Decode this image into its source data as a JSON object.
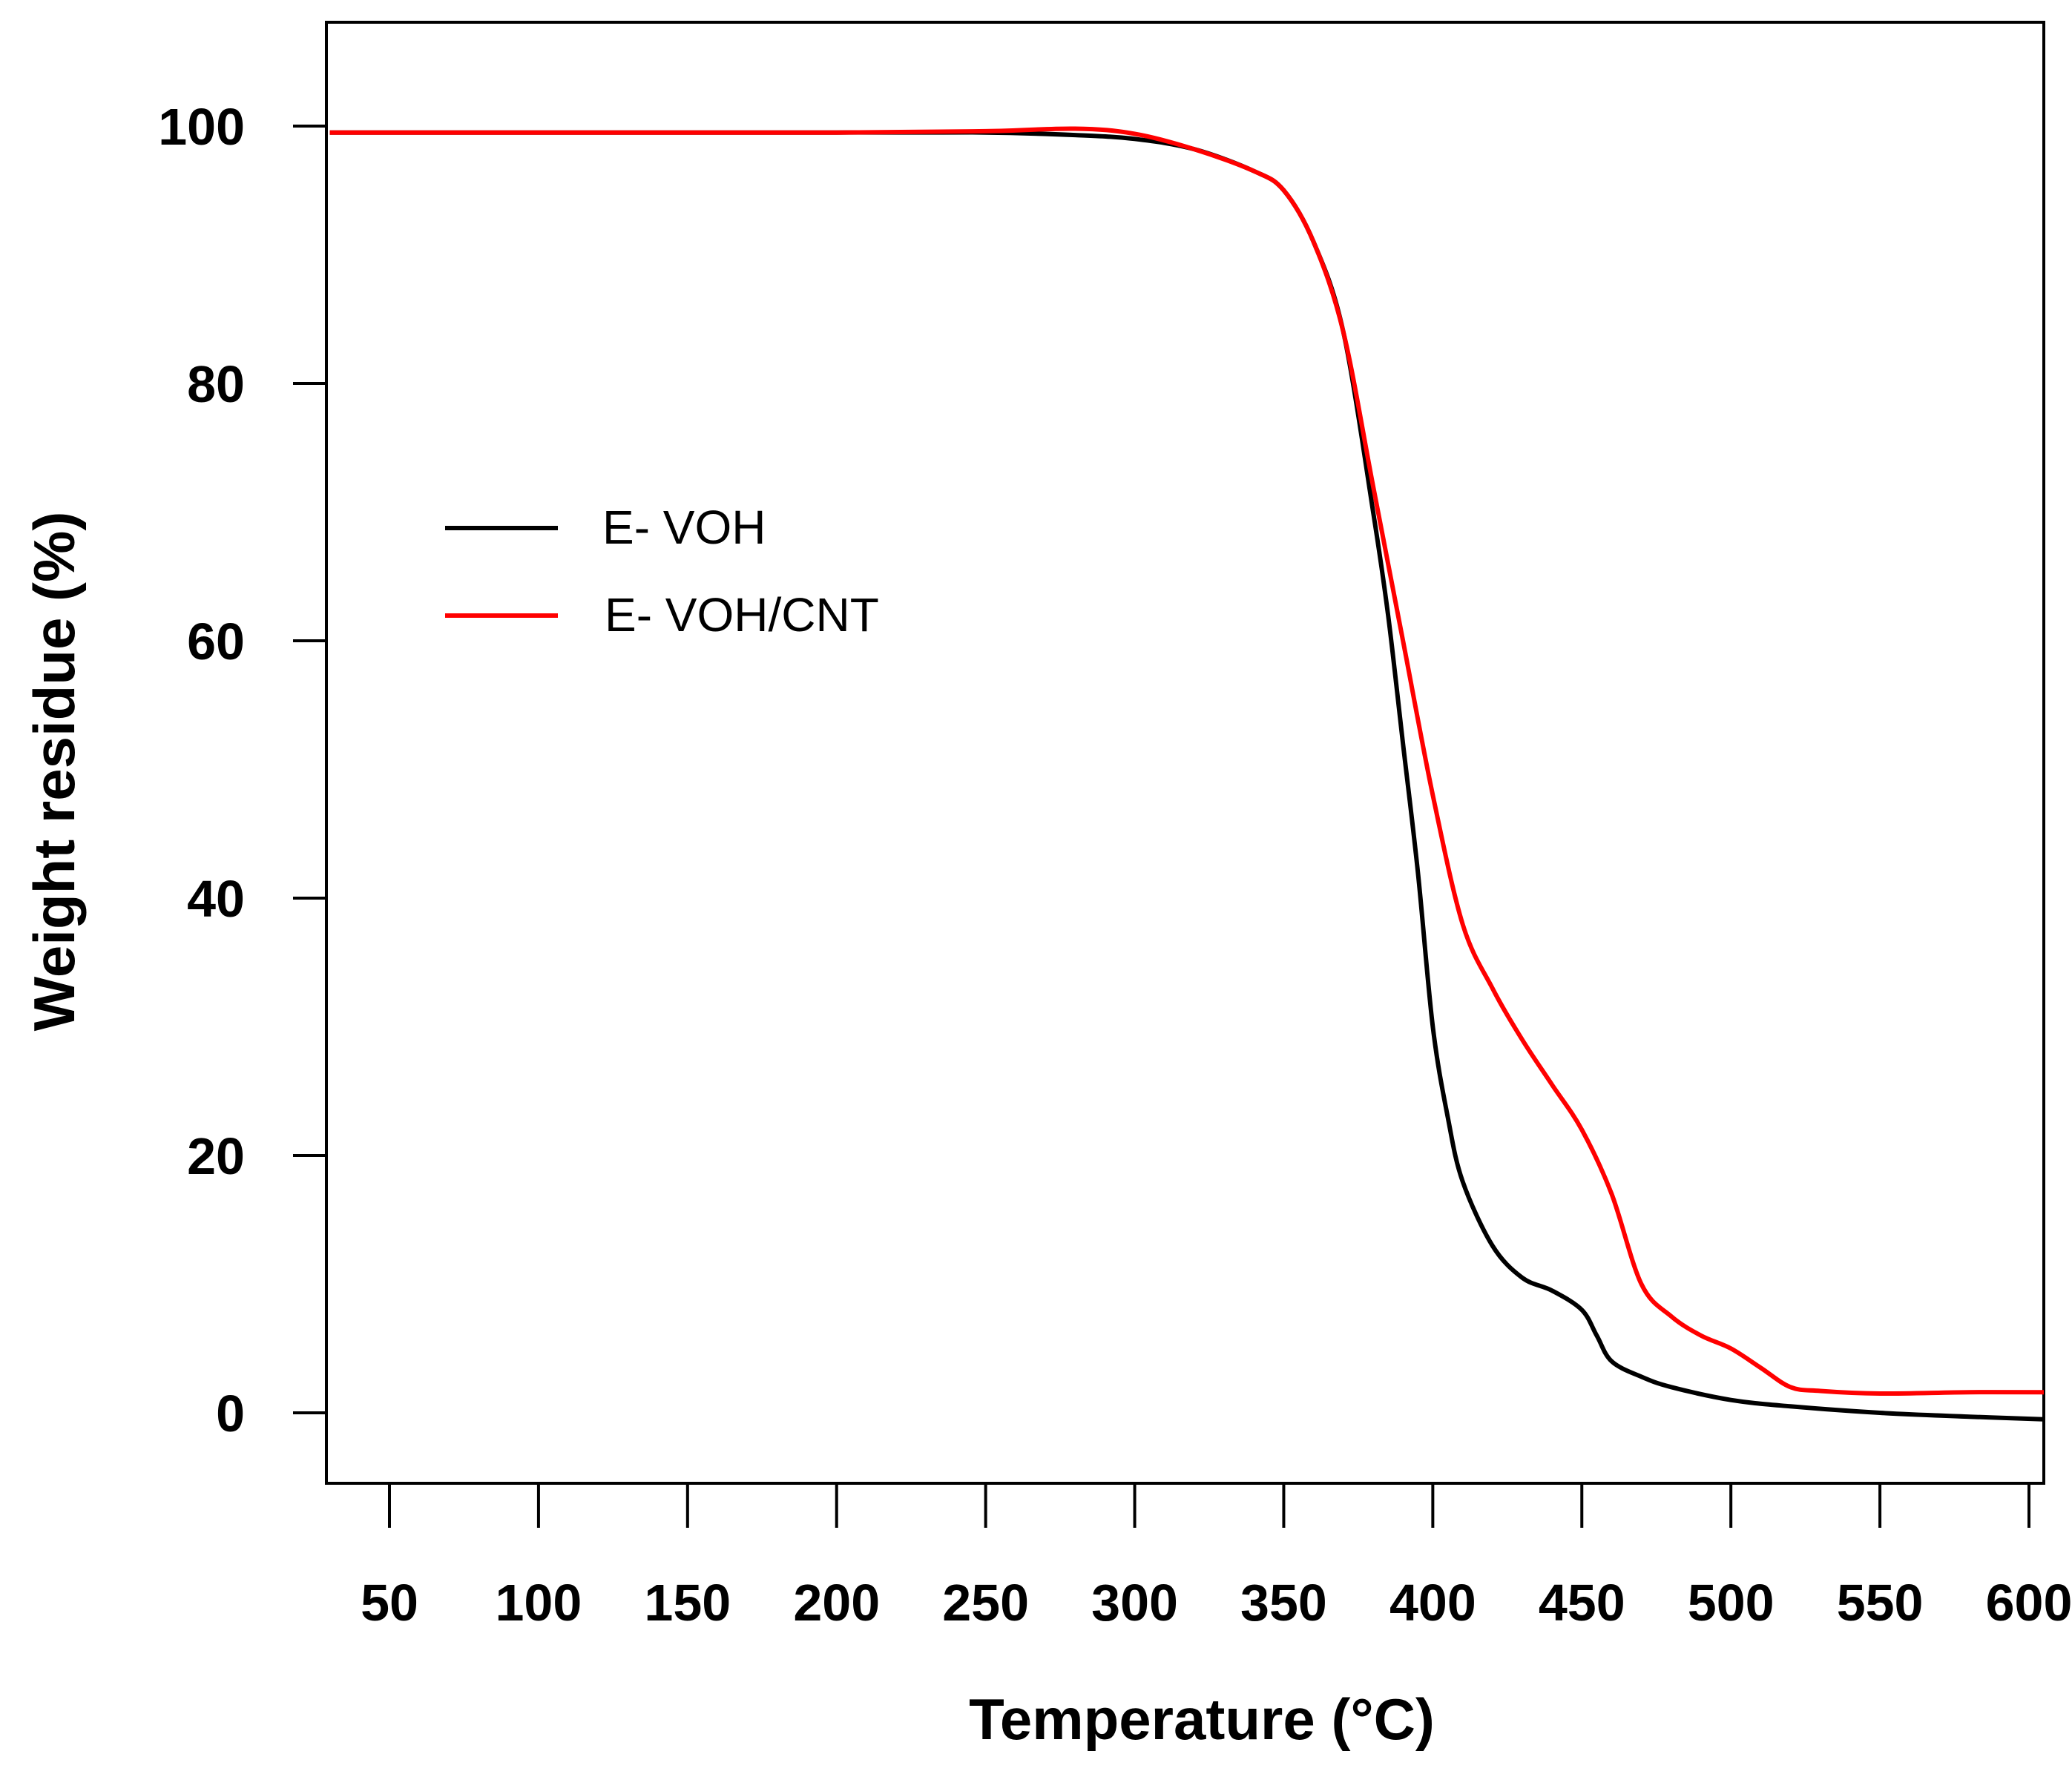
{
  "chart_data": {
    "type": "line",
    "title": "",
    "xlabel": "Temperature (°C)",
    "ylabel": "Weight residue (%)",
    "xlim": [
      30,
      605
    ],
    "ylim": [
      -5,
      108
    ],
    "x_ticks": [
      50,
      100,
      150,
      200,
      250,
      300,
      350,
      400,
      450,
      500,
      550,
      600
    ],
    "x_tick_labels": [
      "50",
      "100",
      "150",
      "200",
      "250",
      "300",
      "350",
      "400",
      "450",
      "500",
      "550",
      "600"
    ],
    "y_ticks": [
      0,
      20,
      40,
      60,
      80,
      100
    ],
    "y_tick_labels": [
      "0",
      "20",
      "40",
      "60",
      "80",
      "100"
    ],
    "grid": false,
    "legend_position": "upper-left",
    "series": [
      {
        "name": "E- VOH",
        "color": "#000000",
        "x": [
          30,
          100,
          200,
          250,
          280,
          300,
          320,
          340,
          350,
          360,
          370,
          380,
          385,
          390,
          395,
          400,
          405,
          410,
          420,
          430,
          440,
          450,
          455,
          460,
          470,
          480,
          500,
          520,
          550,
          580,
          605
        ],
        "y": [
          99.5,
          99.5,
          99.5,
          99.5,
          99.3,
          99.0,
          98.2,
          96.5,
          95.0,
          91.0,
          84.0,
          70.0,
          62.0,
          52.0,
          42.0,
          30.0,
          23.0,
          18.0,
          13.0,
          10.5,
          9.5,
          8.0,
          6.0,
          4.0,
          2.8,
          2.0,
          1.0,
          0.5,
          0.0,
          -0.3,
          -0.5
        ]
      },
      {
        "name": "E- VOH/CNT",
        "color": "#ff0000",
        "x": [
          30,
          100,
          200,
          250,
          280,
          300,
          320,
          340,
          350,
          360,
          370,
          380,
          390,
          400,
          410,
          420,
          430,
          440,
          450,
          460,
          470,
          480,
          490,
          500,
          510,
          520,
          530,
          550,
          580,
          605
        ],
        "y": [
          99.5,
          99.5,
          99.5,
          99.6,
          99.8,
          99.4,
          98.2,
          96.5,
          95.0,
          91.0,
          84.0,
          72.0,
          60.0,
          48.0,
          38.0,
          33.0,
          29.0,
          25.5,
          22.0,
          17.0,
          10.0,
          7.5,
          6.0,
          5.0,
          3.5,
          2.0,
          1.7,
          1.5,
          1.6,
          1.6
        ]
      }
    ]
  }
}
